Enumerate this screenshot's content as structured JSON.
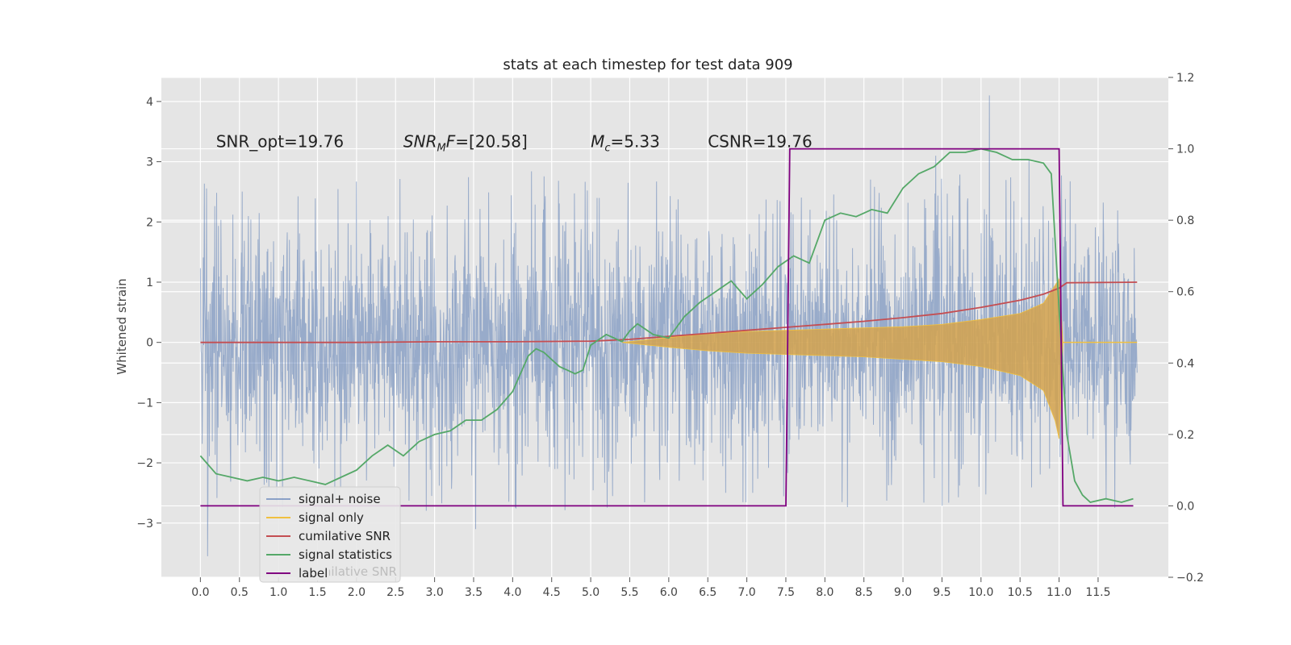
{
  "chart_data": {
    "type": "line",
    "title": "stats at each timestep for test data 909",
    "ylabel": "Whitened strain",
    "xlabel": "",
    "xlim": [
      -0.5,
      12.4
    ],
    "ylim": [
      -3.9,
      4.4
    ],
    "y2lim": [
      -0.2,
      1.2
    ],
    "x_ticks": [
      0.0,
      0.5,
      1.0,
      1.5,
      2.0,
      2.5,
      3.0,
      3.5,
      4.0,
      4.5,
      5.0,
      5.5,
      6.0,
      6.5,
      7.0,
      7.5,
      8.0,
      8.5,
      9.0,
      9.5,
      10.0,
      10.5,
      11.0,
      11.5
    ],
    "x_tick_labels": [
      "0.0",
      "0.5",
      "1.0",
      "1.5",
      "2.0",
      "2.5",
      "3.0",
      "3.5",
      "4.0",
      "4.5",
      "5.0",
      "5.5",
      "6.0",
      "6.5",
      "7.0",
      "7.5",
      "8.0",
      "8.5",
      "9.0",
      "9.5",
      "10.0",
      "10.5",
      "11.0",
      "11.5"
    ],
    "y_ticks": [
      -3,
      -2,
      -1,
      0,
      1,
      2,
      3,
      4
    ],
    "y_tick_labels": [
      "−3",
      "−2",
      "−1",
      "0",
      "1",
      "2",
      "3",
      "4"
    ],
    "y2_ticks": [
      -0.2,
      0.0,
      0.2,
      0.4,
      0.6,
      0.8,
      1.0,
      1.2
    ],
    "y2_tick_labels": [
      "−0.2",
      "0.0",
      "0.2",
      "0.4",
      "0.6",
      "0.8",
      "1.0",
      "1.2"
    ],
    "grid": true,
    "legend_position": "lower-left",
    "annotations": [
      {
        "text": "SNR_opt=19.76",
        "x": 0.2,
        "y": 3.35
      },
      {
        "base": "SNR",
        "sub": "M",
        "suffix": "F=[20.58]",
        "x": 2.6,
        "y": 3.35
      },
      {
        "base": "M",
        "sub": "c",
        "suffix": "=5.33",
        "x": 5.0,
        "y": 3.35
      },
      {
        "text": "CSNR=19.76",
        "x": 6.5,
        "y": 3.35
      }
    ],
    "noise": {
      "x_start": 0.0,
      "x_end": 12.0,
      "core_sd": 0.85,
      "typical_range": [
        -2.6,
        2.8
      ],
      "extremes": [
        4.1,
        -3.55
      ]
    },
    "signal_envelope": {
      "x": [
        5.4,
        6.0,
        6.5,
        7.0,
        7.5,
        8.0,
        8.5,
        9.0,
        9.5,
        10.0,
        10.5,
        10.8,
        10.95,
        11.0,
        11.05
      ],
      "upper": [
        0.0,
        0.08,
        0.14,
        0.18,
        0.2,
        0.22,
        0.24,
        0.26,
        0.3,
        0.38,
        0.48,
        0.65,
        0.95,
        1.05,
        0.0
      ],
      "lower": [
        0.0,
        -0.08,
        -0.14,
        -0.18,
        -0.2,
        -0.22,
        -0.24,
        -0.28,
        -0.32,
        -0.4,
        -0.55,
        -0.8,
        -1.3,
        -1.6,
        0.0
      ]
    },
    "series": [
      {
        "name": "signal+ noise",
        "color": "#4c72b0",
        "axis": "left"
      },
      {
        "name": "signal only",
        "color": "#f0c040",
        "axis": "left"
      },
      {
        "name": "cumilative SNR",
        "color": "#c44e52",
        "axis": "left",
        "x": [
          0.0,
          1.0,
          2.0,
          3.0,
          4.0,
          5.0,
          5.5,
          6.0,
          6.5,
          7.0,
          7.5,
          8.0,
          8.5,
          9.0,
          9.5,
          10.0,
          10.5,
          10.8,
          11.0,
          11.1,
          12.0
        ],
        "y": [
          0.0,
          0.0,
          0.0,
          0.01,
          0.01,
          0.02,
          0.05,
          0.1,
          0.15,
          0.2,
          0.25,
          0.3,
          0.35,
          0.41,
          0.48,
          0.58,
          0.7,
          0.8,
          0.9,
          0.99,
          1.0
        ]
      },
      {
        "name": "signal statistics",
        "color": "#55a868",
        "axis": "right",
        "x": [
          0.0,
          0.2,
          0.4,
          0.6,
          0.8,
          1.0,
          1.2,
          1.4,
          1.6,
          1.8,
          2.0,
          2.2,
          2.4,
          2.6,
          2.8,
          3.0,
          3.2,
          3.4,
          3.6,
          3.8,
          4.0,
          4.1,
          4.2,
          4.3,
          4.4,
          4.5,
          4.6,
          4.7,
          4.8,
          4.9,
          5.0,
          5.2,
          5.4,
          5.5,
          5.6,
          5.8,
          6.0,
          6.2,
          6.4,
          6.6,
          6.8,
          7.0,
          7.2,
          7.4,
          7.6,
          7.8,
          8.0,
          8.2,
          8.4,
          8.6,
          8.8,
          9.0,
          9.2,
          9.4,
          9.6,
          9.8,
          10.0,
          10.2,
          10.4,
          10.6,
          10.8,
          10.9,
          11.0,
          11.1,
          11.2,
          11.3,
          11.4,
          11.6,
          11.8,
          11.95
        ],
        "y": [
          0.14,
          0.09,
          0.08,
          0.07,
          0.08,
          0.07,
          0.08,
          0.07,
          0.06,
          0.08,
          0.1,
          0.14,
          0.17,
          0.14,
          0.18,
          0.2,
          0.21,
          0.24,
          0.24,
          0.27,
          0.32,
          0.37,
          0.42,
          0.44,
          0.43,
          0.41,
          0.39,
          0.38,
          0.37,
          0.38,
          0.45,
          0.48,
          0.46,
          0.49,
          0.51,
          0.48,
          0.47,
          0.53,
          0.57,
          0.6,
          0.63,
          0.58,
          0.62,
          0.67,
          0.7,
          0.68,
          0.8,
          0.82,
          0.81,
          0.83,
          0.82,
          0.89,
          0.93,
          0.95,
          0.99,
          0.99,
          1.0,
          0.99,
          0.97,
          0.97,
          0.96,
          0.93,
          0.55,
          0.2,
          0.07,
          0.03,
          0.01,
          0.02,
          0.01,
          0.02
        ]
      },
      {
        "name": "label",
        "color": "#800080",
        "axis": "right",
        "x": [
          0.0,
          7.5,
          7.55,
          11.0,
          11.05,
          11.95
        ],
        "y": [
          0.0,
          0.0,
          1.0,
          1.0,
          0.0,
          0.0
        ]
      }
    ],
    "legend": {
      "entries": [
        "signal+ noise",
        "signal only",
        "cumilative SNR",
        "signal statistics",
        "label"
      ],
      "obscured_text": "cumilative SNR"
    }
  }
}
